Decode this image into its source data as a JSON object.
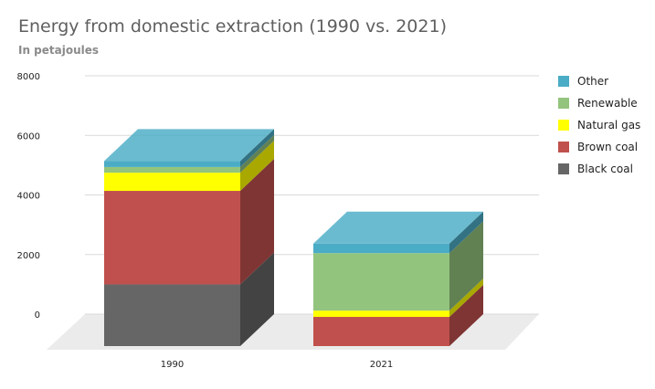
{
  "chart_data": {
    "type": "bar",
    "stacked": true,
    "three_d": true,
    "title": "Energy from domestic extraction (1990 vs. 2021)",
    "subtitle": "In petajoules",
    "categories": [
      "1990",
      "2021"
    ],
    "ylim": [
      0,
      8000
    ],
    "y_ticks": [
      "8000",
      "6000",
      "4000",
      "2000",
      "0"
    ],
    "grid": true,
    "legend_position": "right",
    "series": [
      {
        "name": "Black coal",
        "values": [
          2070,
          0
        ],
        "color": "#666666"
      },
      {
        "name": "Brown coal",
        "values": [
          3140,
          980
        ],
        "color": "#c0504d"
      },
      {
        "name": "Natural gas",
        "values": [
          610,
          210
        ],
        "color": "#ffff00"
      },
      {
        "name": "Renewable",
        "values": [
          190,
          1930
        ],
        "color": "#93c47d"
      },
      {
        "name": "Other",
        "values": [
          200,
          320
        ],
        "color": "#4bacc6"
      }
    ],
    "legend_order": [
      "Other",
      "Renewable",
      "Natural gas",
      "Brown coal",
      "Black coal"
    ]
  }
}
